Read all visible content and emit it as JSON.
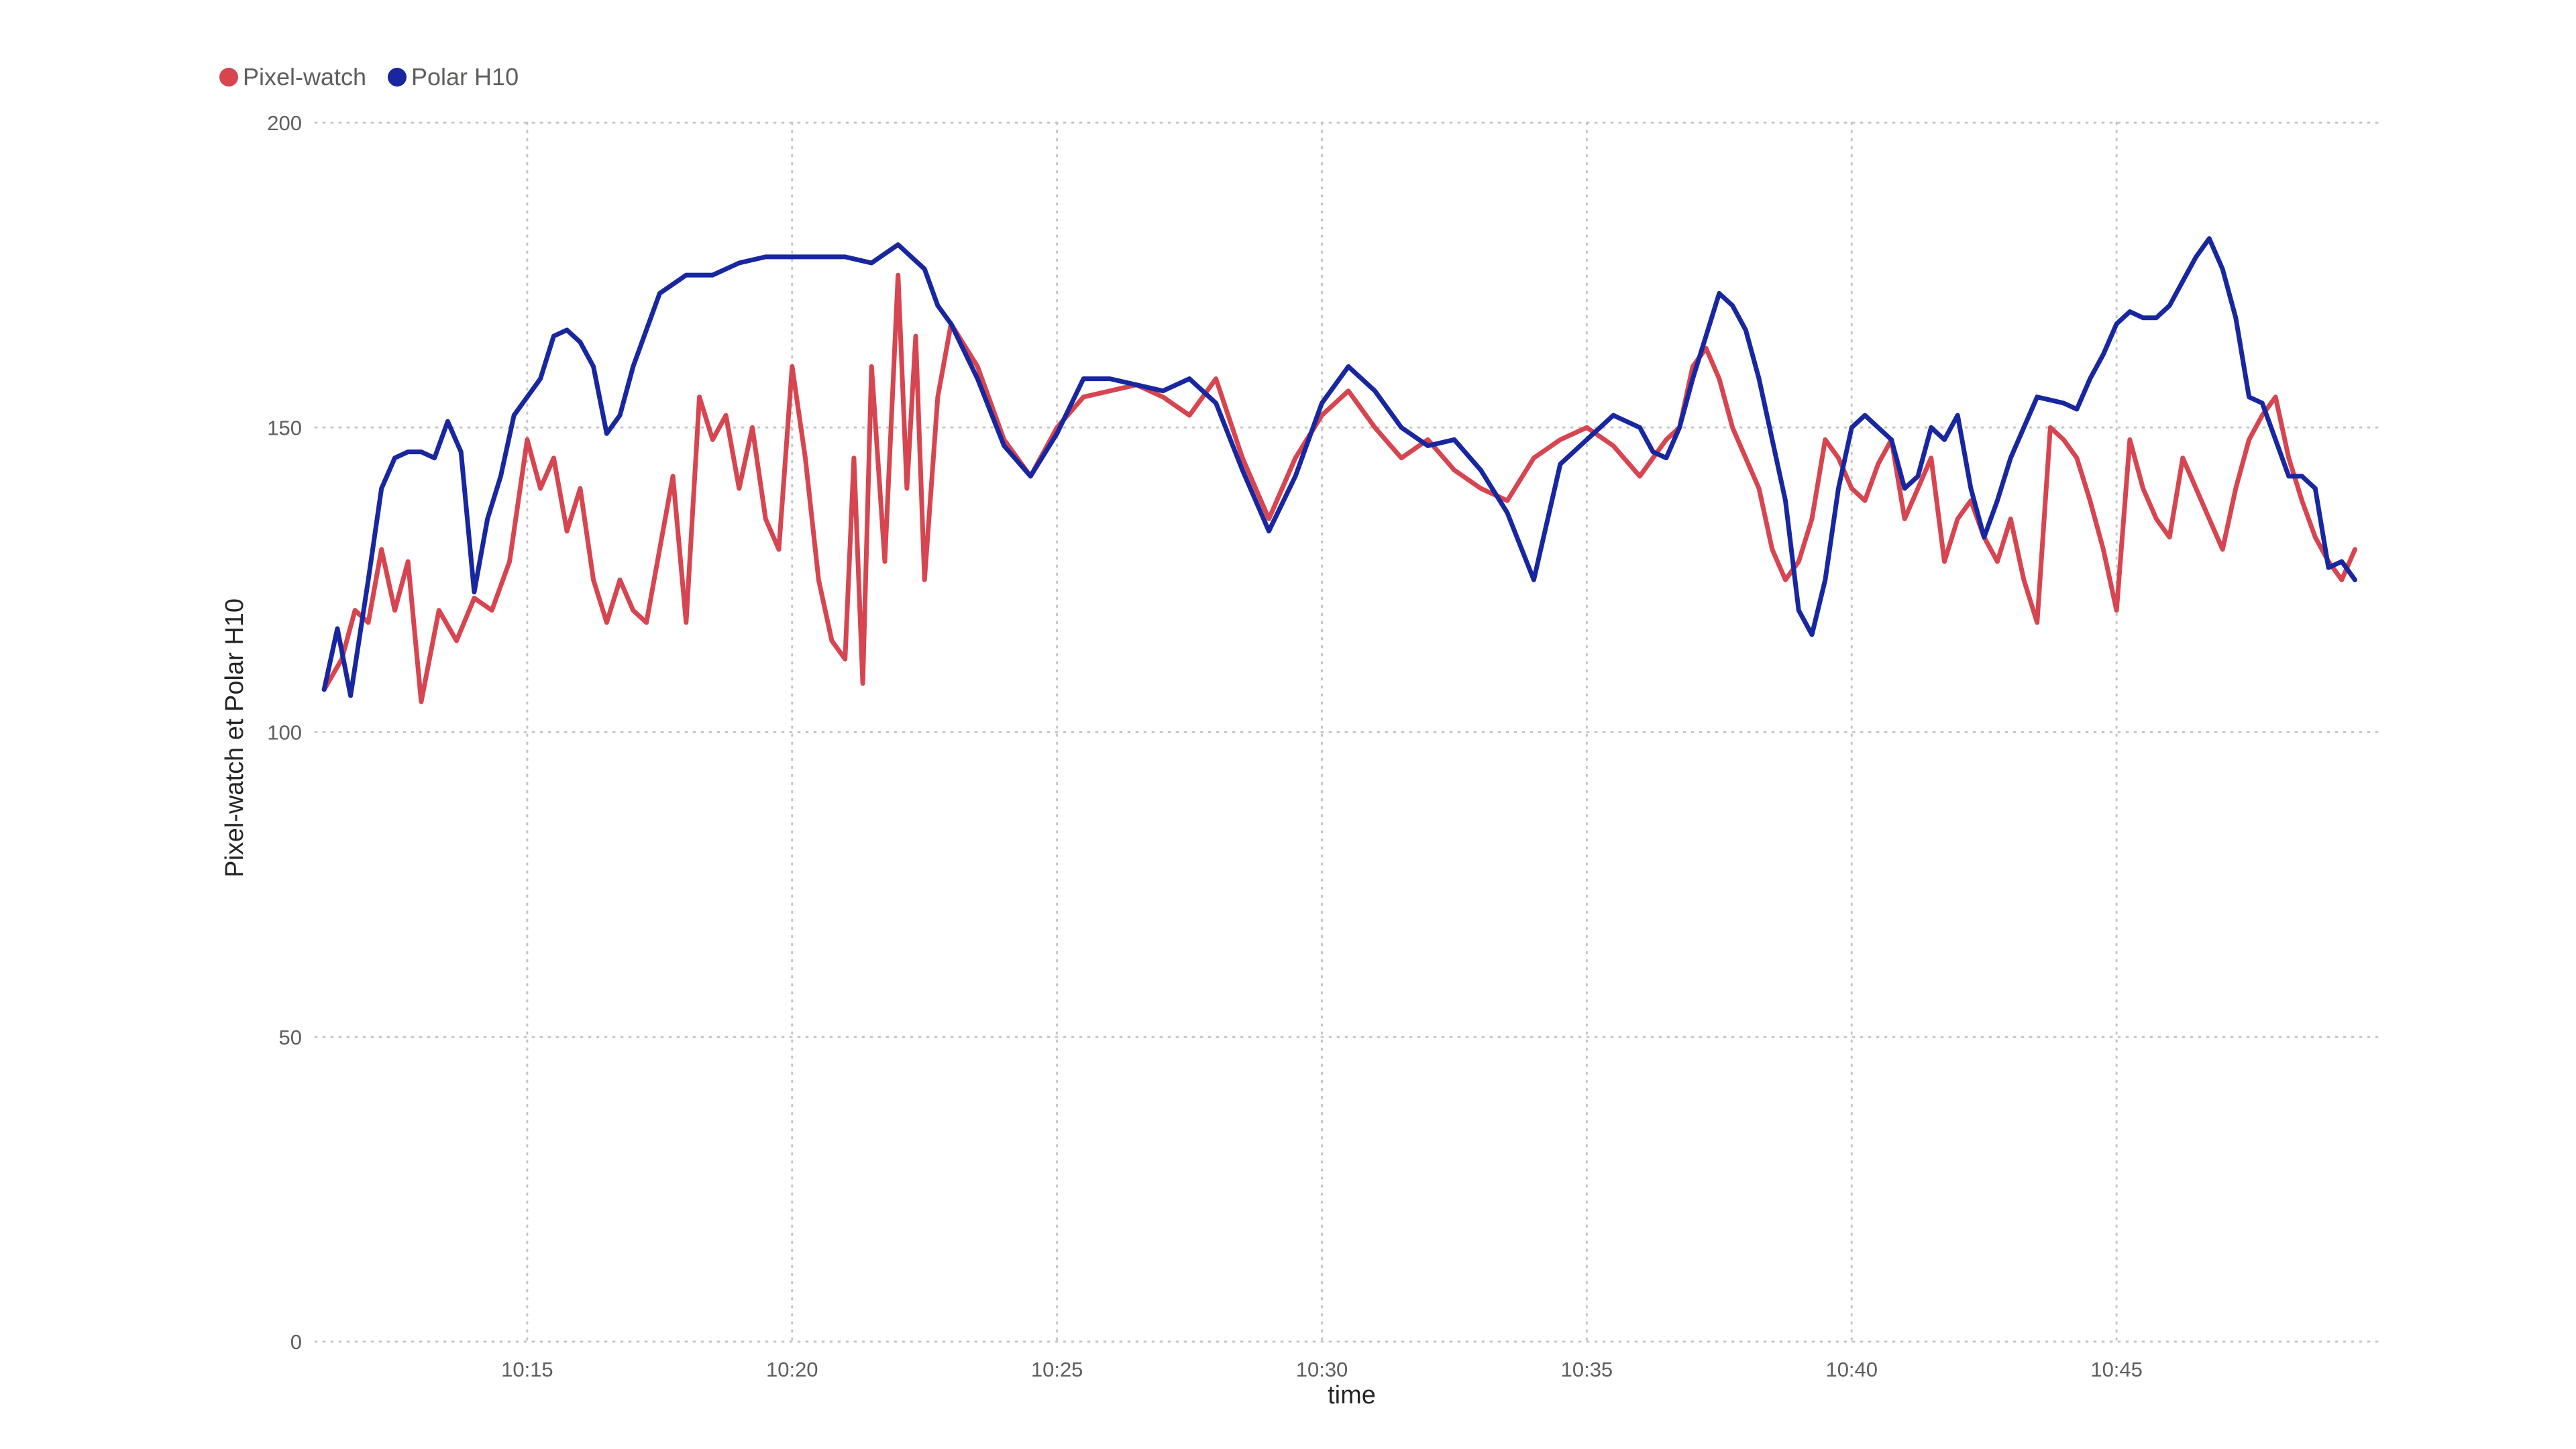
{
  "chart_data": {
    "type": "line",
    "xlabel": "time",
    "ylabel": "Pixel-watch et Polar H10",
    "ylim": [
      0,
      200
    ],
    "xlim": [
      "10:11",
      "10:50"
    ],
    "yticks": [
      "0",
      "50",
      "100",
      "150",
      "200"
    ],
    "xticks": [
      "10:15",
      "10:20",
      "10:25",
      "10:30",
      "10:35",
      "10:40",
      "10:45"
    ],
    "grid": true,
    "legend_position": "top-left",
    "series": [
      {
        "name": "Pixel-watch",
        "color": "#d64550",
        "x": [
          "10:11:10",
          "10:11:30",
          "10:11:45",
          "10:12:00",
          "10:12:15",
          "10:12:30",
          "10:12:45",
          "10:13:00",
          "10:13:20",
          "10:13:40",
          "10:14:00",
          "10:14:20",
          "10:14:40",
          "10:15:00",
          "10:15:15",
          "10:15:30",
          "10:15:45",
          "10:16:00",
          "10:16:15",
          "10:16:30",
          "10:16:45",
          "10:17:00",
          "10:17:15",
          "10:17:30",
          "10:17:45",
          "10:18:00",
          "10:18:15",
          "10:18:30",
          "10:18:45",
          "10:19:00",
          "10:19:15",
          "10:19:30",
          "10:19:45",
          "10:20:00",
          "10:20:15",
          "10:20:30",
          "10:20:45",
          "10:21:00",
          "10:21:10",
          "10:21:20",
          "10:21:30",
          "10:21:45",
          "10:22:00",
          "10:22:10",
          "10:22:20",
          "10:22:30",
          "10:22:45",
          "10:23:00",
          "10:23:30",
          "10:24:00",
          "10:24:30",
          "10:25:00",
          "10:25:30",
          "10:26:00",
          "10:26:30",
          "10:27:00",
          "10:27:30",
          "10:28:00",
          "10:28:30",
          "10:29:00",
          "10:29:30",
          "10:30:00",
          "10:30:30",
          "10:31:00",
          "10:31:30",
          "10:32:00",
          "10:32:30",
          "10:33:00",
          "10:33:30",
          "10:34:00",
          "10:34:30",
          "10:35:00",
          "10:35:30",
          "10:36:00",
          "10:36:15",
          "10:36:30",
          "10:36:45",
          "10:37:00",
          "10:37:15",
          "10:37:30",
          "10:37:45",
          "10:38:00",
          "10:38:15",
          "10:38:30",
          "10:38:45",
          "10:39:00",
          "10:39:15",
          "10:39:30",
          "10:39:45",
          "10:40:00",
          "10:40:15",
          "10:40:30",
          "10:40:45",
          "10:41:00",
          "10:41:15",
          "10:41:30",
          "10:41:45",
          "10:42:00",
          "10:42:15",
          "10:42:30",
          "10:42:45",
          "10:43:00",
          "10:43:15",
          "10:43:30",
          "10:43:45",
          "10:44:00",
          "10:44:15",
          "10:44:30",
          "10:44:45",
          "10:45:00",
          "10:45:15",
          "10:45:30",
          "10:45:45",
          "10:46:00",
          "10:46:15",
          "10:46:30",
          "10:46:45",
          "10:47:00",
          "10:47:15",
          "10:47:30",
          "10:47:45",
          "10:48:00",
          "10:48:15",
          "10:48:30",
          "10:48:45",
          "10:49:00",
          "10:49:15",
          "10:49:30"
        ],
        "y": [
          107,
          112,
          120,
          118,
          130,
          120,
          128,
          105,
          120,
          115,
          122,
          120,
          128,
          148,
          140,
          145,
          133,
          140,
          125,
          118,
          125,
          120,
          118,
          130,
          142,
          118,
          155,
          148,
          152,
          140,
          150,
          135,
          130,
          160,
          145,
          125,
          115,
          112,
          145,
          108,
          160,
          128,
          175,
          140,
          165,
          125,
          155,
          167,
          160,
          148,
          142,
          150,
          155,
          156,
          157,
          155,
          152,
          158,
          145,
          135,
          145,
          152,
          156,
          150,
          145,
          148,
          143,
          140,
          138,
          145,
          148,
          150,
          147,
          142,
          145,
          148,
          150,
          160,
          163,
          158,
          150,
          145,
          140,
          130,
          125,
          128,
          135,
          148,
          145,
          140,
          138,
          144,
          148,
          135,
          140,
          145,
          128,
          135,
          138,
          132,
          128,
          135,
          125,
          118,
          150,
          148,
          145,
          138,
          130,
          120,
          148,
          140,
          135,
          132,
          145,
          140,
          135,
          130,
          140,
          148,
          152,
          155,
          145,
          138,
          132,
          128,
          125,
          130
        ],
        "y_note_hidden": null
      },
      {
        "name": "Polar H10",
        "color": "#1827a0",
        "x": [
          "10:11:10",
          "10:11:25",
          "10:11:40",
          "10:12:00",
          "10:12:15",
          "10:12:30",
          "10:12:45",
          "10:13:00",
          "10:13:15",
          "10:13:30",
          "10:13:45",
          "10:14:00",
          "10:14:15",
          "10:14:30",
          "10:14:45",
          "10:15:00",
          "10:15:15",
          "10:15:30",
          "10:15:45",
          "10:16:00",
          "10:16:15",
          "10:16:30",
          "10:16:45",
          "10:17:00",
          "10:17:30",
          "10:18:00",
          "10:18:30",
          "10:19:00",
          "10:19:30",
          "10:20:00",
          "10:20:30",
          "10:21:00",
          "10:21:30",
          "10:22:00",
          "10:22:15",
          "10:22:30",
          "10:22:45",
          "10:23:00",
          "10:23:30",
          "10:24:00",
          "10:24:30",
          "10:25:00",
          "10:25:30",
          "10:26:00",
          "10:26:30",
          "10:27:00",
          "10:27:30",
          "10:28:00",
          "10:28:30",
          "10:29:00",
          "10:29:30",
          "10:30:00",
          "10:30:30",
          "10:31:00",
          "10:31:30",
          "10:32:00",
          "10:32:30",
          "10:33:00",
          "10:33:30",
          "10:34:00",
          "10:34:30",
          "10:35:00",
          "10:35:30",
          "10:36:00",
          "10:36:15",
          "10:36:30",
          "10:36:45",
          "10:37:00",
          "10:37:15",
          "10:37:30",
          "10:37:45",
          "10:38:00",
          "10:38:15",
          "10:38:30",
          "10:38:45",
          "10:39:00",
          "10:39:15",
          "10:39:30",
          "10:39:45",
          "10:40:00",
          "10:40:15",
          "10:40:30",
          "10:40:45",
          "10:41:00",
          "10:41:15",
          "10:41:30",
          "10:41:45",
          "10:42:00",
          "10:42:15",
          "10:42:30",
          "10:42:45",
          "10:43:00",
          "10:43:30",
          "10:44:00",
          "10:44:15",
          "10:44:30",
          "10:44:45",
          "10:45:00",
          "10:45:15",
          "10:45:30",
          "10:45:45",
          "10:46:00",
          "10:46:15",
          "10:46:30",
          "10:46:45",
          "10:47:00",
          "10:47:15",
          "10:47:30",
          "10:47:45",
          "10:48:00",
          "10:48:15",
          "10:48:30",
          "10:48:45",
          "10:49:00",
          "10:49:15",
          "10:49:30"
        ],
        "y": [
          107,
          117,
          106,
          125,
          140,
          145,
          146,
          146,
          145,
          151,
          146,
          123,
          135,
          142,
          152,
          155,
          158,
          165,
          166,
          164,
          160,
          149,
          152,
          160,
          172,
          175,
          175,
          177,
          178,
          178,
          178,
          178,
          177,
          180,
          178,
          176,
          170,
          167,
          158,
          147,
          142,
          149,
          158,
          158,
          157,
          156,
          158,
          154,
          143,
          133,
          142,
          154,
          160,
          156,
          150,
          147,
          148,
          143,
          136,
          125,
          144,
          148,
          152,
          150,
          146,
          145,
          150,
          158,
          165,
          172,
          170,
          166,
          158,
          148,
          138,
          120,
          116,
          125,
          140,
          150,
          152,
          150,
          148,
          140,
          142,
          150,
          148,
          152,
          140,
          132,
          138,
          145,
          155,
          154,
          153,
          158,
          162,
          167,
          169,
          168,
          168,
          170,
          174,
          178,
          181,
          176,
          168,
          155,
          154,
          148,
          142,
          142,
          140,
          127,
          128,
          125
        ]
      }
    ]
  }
}
